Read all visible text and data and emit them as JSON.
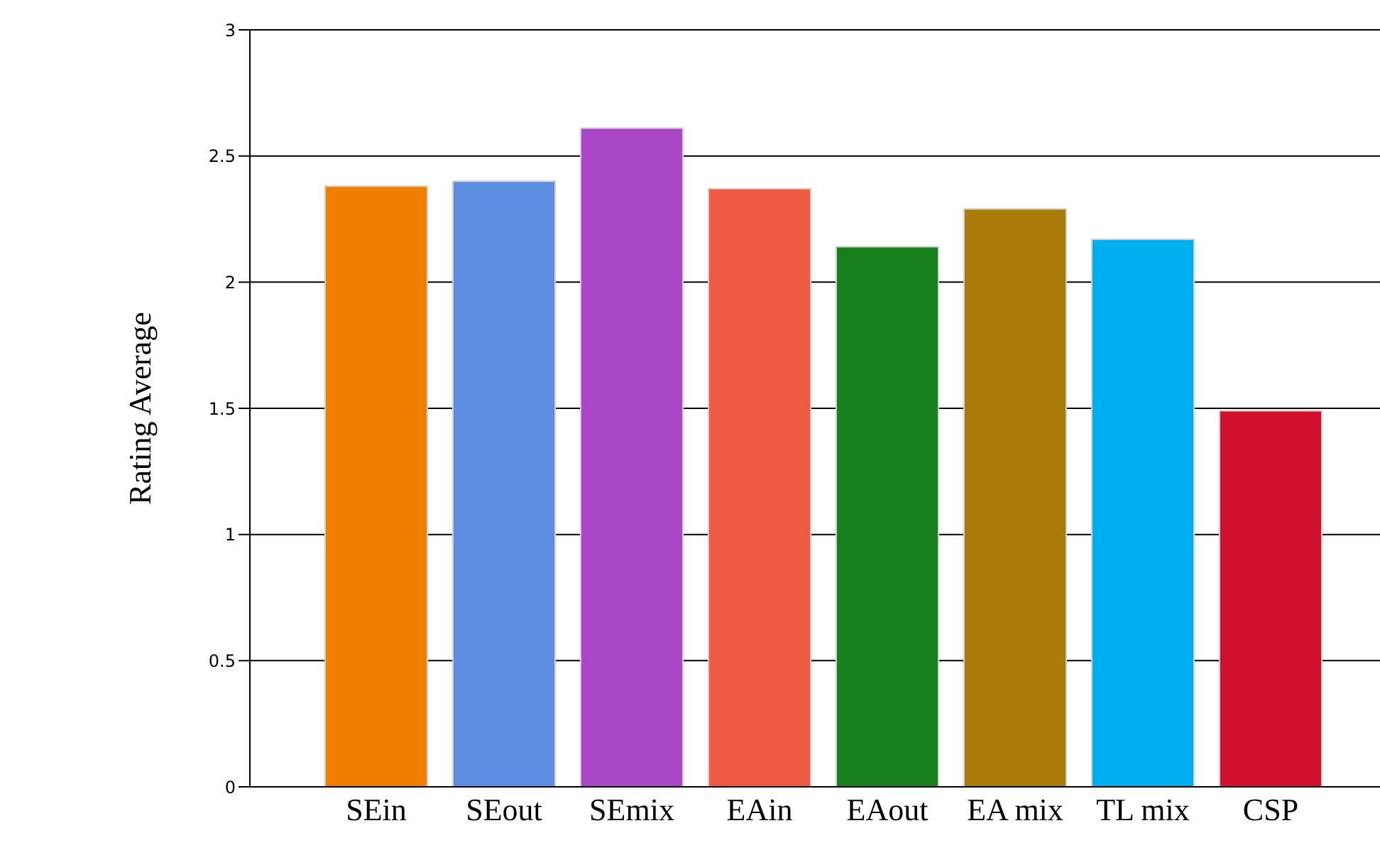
{
  "chart_data": {
    "type": "bar",
    "ylabel": "Rating Average",
    "categories": [
      "SEin",
      "SEout",
      "SEmix",
      "EAin",
      "EAout",
      "EA mix",
      "TL mix",
      "CSP"
    ],
    "values": [
      2.38,
      2.4,
      2.61,
      2.37,
      2.14,
      2.29,
      2.17,
      1.49
    ],
    "colors": [
      "#f07f00",
      "#5b8de0",
      "#a947c6",
      "#ef5a40",
      "#17801c",
      "#a87a08",
      "#00aeef",
      "#d0102c"
    ],
    "ylim": [
      0,
      3
    ],
    "yticks": [
      0,
      0.5,
      1,
      1.5,
      2,
      2.5,
      3
    ],
    "grid": "y"
  }
}
